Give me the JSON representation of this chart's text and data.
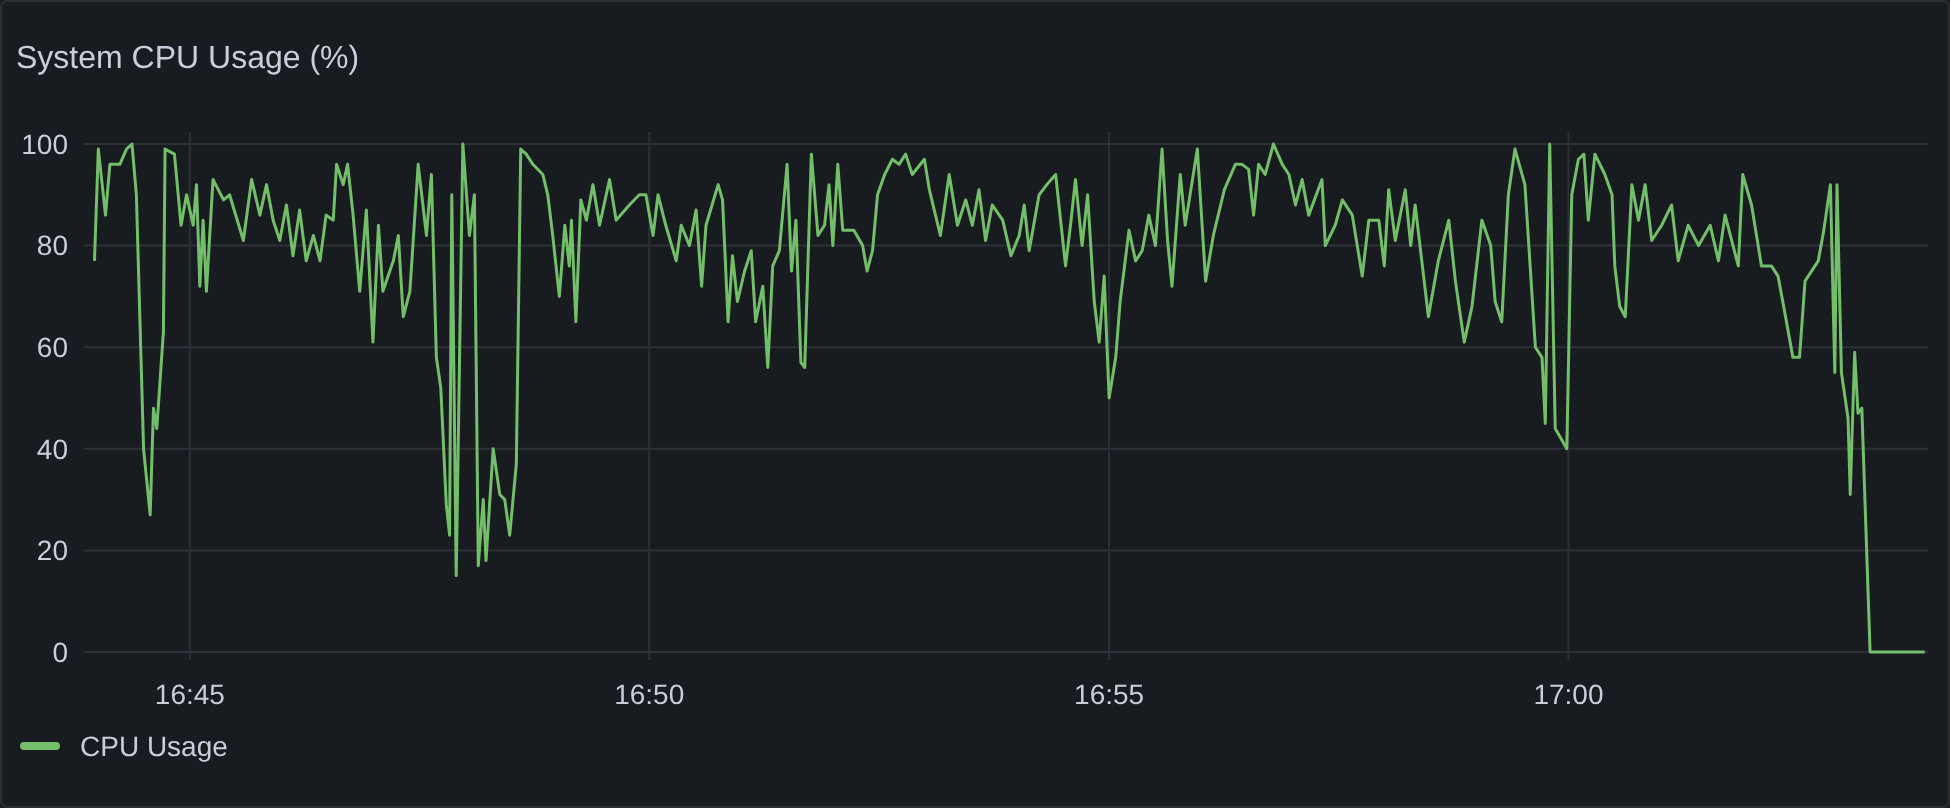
{
  "chart_data": {
    "type": "line",
    "title": "System CPU Usage (%)",
    "legend": "bottom left",
    "grid": true,
    "marker": "none",
    "line_style": "solid",
    "xlim": [
      16.7308,
      17.0652
    ],
    "ylim": [
      0,
      100
    ],
    "yticks": [
      0,
      20,
      40,
      60,
      80,
      100
    ],
    "xticks": [
      {
        "value": 16.75,
        "label": "16:45"
      },
      {
        "value": 16.8333,
        "label": "16:50"
      },
      {
        "value": 16.9167,
        "label": "16:55"
      },
      {
        "value": 17,
        "label": "17:00"
      }
    ],
    "series": [
      {
        "name": "CPU Usage",
        "color": "#73bf69",
        "x": [
          16.7327,
          16.7334,
          16.7347,
          16.7355,
          16.7373,
          16.7385,
          16.7395,
          16.7403,
          16.7416,
          16.7428,
          16.7434,
          16.744,
          16.7452,
          16.7455,
          16.7472,
          16.7484,
          16.7494,
          16.7506,
          16.7512,
          16.7518,
          16.7524,
          16.753,
          16.7542,
          16.7561,
          16.7572,
          16.7597,
          16.7612,
          16.7627,
          16.7639,
          16.7651,
          16.7663,
          16.7675,
          16.7687,
          16.7699,
          16.7711,
          16.7724,
          16.7736,
          16.7747,
          16.776,
          16.7766,
          16.7778,
          16.7786,
          16.7796,
          16.7808,
          16.782,
          16.7832,
          16.7842,
          16.785,
          16.7869,
          16.7878,
          16.7887,
          16.7899,
          16.7914,
          16.7929,
          16.7938,
          16.7947,
          16.7955,
          16.7965,
          16.7971,
          16.7975,
          16.7983,
          16.7995,
          16.8007,
          16.8016,
          16.8023,
          16.8032,
          16.8037,
          16.805,
          16.8062,
          16.8071,
          16.808,
          16.8092,
          16.81,
          16.811,
          16.8122,
          16.814,
          16.8149,
          16.8158,
          16.817,
          16.818,
          16.8188,
          16.8192,
          16.82,
          16.8209,
          16.8219,
          16.8231,
          16.8243,
          16.8261,
          16.8273,
          16.8297,
          16.8315,
          16.8327,
          16.834,
          16.8349,
          16.8363,
          16.8382,
          16.8391,
          16.8406,
          16.8418,
          16.8428,
          16.8436,
          16.8458,
          16.8466,
          16.8476,
          16.8484,
          16.8493,
          16.8506,
          16.8518,
          16.8526,
          16.8539,
          16.8548,
          16.8557,
          16.8569,
          16.8583,
          16.8591,
          16.8599,
          16.8608,
          16.8615,
          16.8627,
          16.8639,
          16.8651,
          16.8659,
          16.8666,
          16.8675,
          16.8684,
          16.8704,
          16.872,
          16.8728,
          16.8738,
          16.8747,
          16.876,
          16.8774,
          16.8786,
          16.8798,
          16.881,
          16.8832,
          16.8841,
          16.8861,
          16.8877,
          16.8892,
          16.8907,
          16.8919,
          16.8931,
          16.8943,
          16.8955,
          16.8974,
          16.8989,
          16.9004,
          16.9013,
          16.9022,
          16.904,
          16.9054,
          16.907,
          16.9088,
          16.9098,
          16.9106,
          16.9118,
          16.9128,
          16.914,
          16.9149,
          16.9158,
          16.9167,
          16.9179,
          16.9187,
          16.9203,
          16.9215,
          16.9227,
          16.9239,
          16.9251,
          16.9263,
          16.9273,
          16.9281,
          16.9296,
          16.9305,
          16.9327,
          16.9342,
          16.9356,
          16.9376,
          16.9396,
          16.9408,
          16.942,
          16.9429,
          16.9438,
          16.945,
          16.9465,
          16.9481,
          16.9493,
          16.9505,
          16.9517,
          16.9529,
          16.9553,
          16.9559,
          16.9577,
          16.959,
          16.9608,
          16.9626,
          16.9638,
          16.9656,
          16.9666,
          16.9674,
          16.9686,
          16.9704,
          16.9714,
          16.9722,
          16.9746,
          16.9764,
          16.9783,
          16.9795,
          16.9811,
          16.9825,
          16.9843,
          16.9859,
          16.9867,
          16.9879,
          16.9891,
          16.9903,
          16.9921,
          16.994,
          16.9952,
          16.9958,
          16.9966,
          16.9976,
          16.9997,
          17.0006,
          17.0018,
          17.0028,
          17.0036,
          17.0048,
          17.0066,
          17.0079,
          17.0084,
          17.0093,
          17.0103,
          17.0115,
          17.0127,
          17.0139,
          17.0151,
          17.0169,
          17.0187,
          17.0199,
          17.0217,
          17.0236,
          17.0257,
          17.0272,
          17.0284,
          17.0308,
          17.0316,
          17.0332,
          17.035,
          17.0368,
          17.038,
          17.0392,
          17.0407,
          17.0419,
          17.0429,
          17.0453,
          17.0463,
          17.0475,
          17.0483,
          17.0487,
          17.0495,
          17.0507,
          17.0511,
          17.0519,
          17.0525,
          17.0532,
          17.0547,
          17.0574,
          17.0646
        ],
        "values": [
          77,
          99,
          86,
          96,
          96,
          99,
          100,
          90,
          40,
          27,
          48,
          44,
          63,
          99,
          98,
          84,
          90,
          84,
          92,
          72,
          85,
          71,
          93,
          89,
          90,
          81,
          93,
          86,
          92,
          85,
          81,
          88,
          78,
          87,
          77,
          82,
          77,
          86,
          85,
          96,
          92,
          96,
          86,
          71,
          87,
          61,
          84,
          71,
          77,
          82,
          66,
          71,
          96,
          82,
          94,
          58,
          52,
          29,
          23,
          90,
          15,
          100,
          82,
          90,
          17,
          30,
          18,
          40,
          31,
          30,
          23,
          37,
          99,
          98,
          96,
          94,
          90,
          82,
          70,
          84,
          76,
          85,
          65,
          89,
          85,
          92,
          84,
          93,
          85,
          88,
          90,
          90,
          82,
          90,
          84,
          77,
          84,
          80,
          87,
          72,
          84,
          92,
          89,
          65,
          78,
          69,
          75,
          79,
          65,
          72,
          56,
          76,
          79,
          96,
          75,
          85,
          57,
          56,
          98,
          82,
          84,
          92,
          80,
          96,
          83,
          83,
          80,
          75,
          79,
          90,
          94,
          97,
          96,
          98,
          94,
          97,
          91,
          82,
          94,
          84,
          89,
          84,
          91,
          81,
          88,
          85,
          78,
          82,
          88,
          79,
          90,
          92,
          94,
          76,
          85,
          93,
          80,
          90,
          69,
          61,
          74,
          50,
          58,
          69,
          83,
          77,
          79,
          86,
          80,
          99,
          81,
          72,
          94,
          84,
          99,
          73,
          82,
          91,
          96,
          96,
          95,
          86,
          96,
          94,
          100,
          96,
          94,
          88,
          93,
          86,
          93,
          80,
          84,
          89,
          86,
          74,
          85,
          85,
          76,
          91,
          81,
          91,
          80,
          88,
          66,
          77,
          85,
          73,
          61,
          68,
          85,
          80,
          69,
          65,
          90,
          99,
          92,
          60,
          58,
          45,
          100,
          44,
          40,
          90,
          97,
          98,
          85,
          98,
          94,
          90,
          76,
          68,
          66,
          92,
          85,
          92,
          81,
          84,
          88,
          77,
          84,
          80,
          84,
          77,
          86,
          76,
          94,
          88,
          76,
          76,
          74,
          67,
          58,
          58,
          73,
          77,
          83,
          92,
          55,
          92,
          55,
          46,
          31,
          59,
          47,
          48,
          0,
          0,
          0
        ]
      }
    ]
  }
}
